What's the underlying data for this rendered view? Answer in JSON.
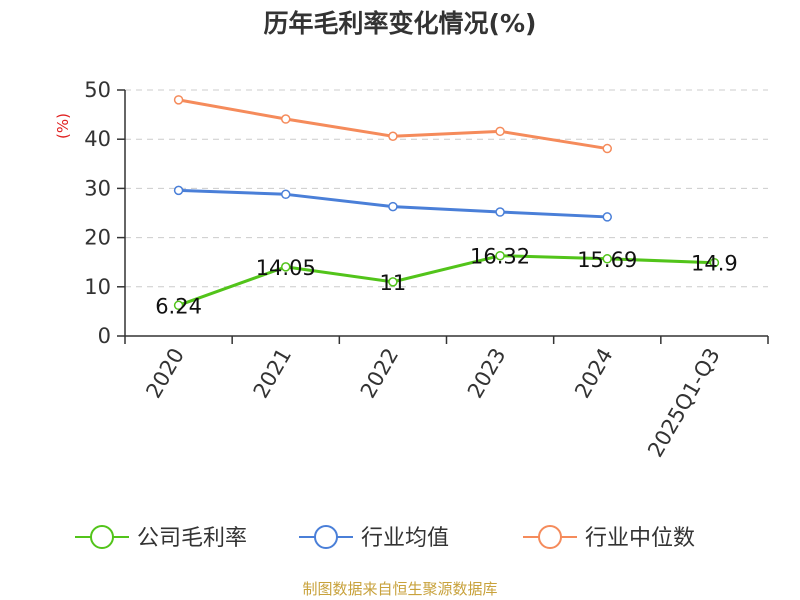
{
  "chart_data": {
    "type": "line",
    "title": "历年毛利率变化情况(%)",
    "unit_label": "(%)",
    "categories": [
      "2020",
      "2021",
      "2022",
      "2023",
      "2024",
      "2025Q1-Q3"
    ],
    "ylim": [
      0,
      50
    ],
    "yticks": [
      0,
      10,
      20,
      30,
      40,
      50
    ],
    "grid": true,
    "legend_position": "bottom",
    "series": [
      {
        "name": "公司毛利率",
        "color": "#52c41a",
        "values": [
          6.24,
          14.05,
          11,
          16.32,
          15.69,
          14.9
        ],
        "labels": [
          "6.24",
          "14.05",
          "11",
          "16.32",
          "15.69",
          "14.9"
        ]
      },
      {
        "name": "行业均值",
        "color": "#4a7fd8",
        "values": [
          29.6,
          28.8,
          26.3,
          25.2,
          24.2,
          null
        ]
      },
      {
        "name": "行业中位数",
        "color": "#f58b5b",
        "values": [
          48.0,
          44.1,
          40.6,
          41.6,
          38.1,
          null
        ]
      }
    ]
  },
  "source": "制图数据来自恒生聚源数据库"
}
